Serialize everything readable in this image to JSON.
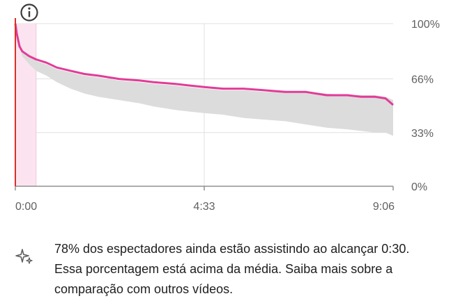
{
  "info": {
    "icon": "info-icon"
  },
  "chart_data": {
    "type": "area",
    "x_tick_labels": [
      "0:00",
      "4:33",
      "9:06"
    ],
    "x_ticks_seconds": [
      0,
      273,
      546
    ],
    "xlim_seconds": [
      0,
      546
    ],
    "y_tick_labels": [
      "100%",
      "66%",
      "33%",
      "0%"
    ],
    "y_ticks": [
      100,
      66,
      33,
      0
    ],
    "ylim": [
      0,
      100
    ],
    "grid": true,
    "highlight_range_seconds": [
      0,
      30
    ],
    "colors": {
      "line": "#e23b98",
      "band": "#dcdcdc",
      "highlight": "#fbe4ef",
      "start": "#d93025",
      "grid": "#e0e0e0",
      "baseline": "#909090"
    },
    "series": [
      {
        "kind": "line",
        "x": [
          0,
          2,
          6,
          10,
          20,
          30,
          45,
          60,
          80,
          100,
          120,
          150,
          180,
          200,
          230,
          250,
          273,
          300,
          330,
          360,
          390,
          420,
          450,
          480,
          500,
          520,
          535,
          546
        ],
        "y": [
          100,
          94,
          86,
          83,
          80,
          78,
          76,
          73,
          71,
          69,
          68,
          66,
          65,
          64,
          63,
          62,
          61,
          60,
          60,
          59,
          58,
          58,
          56,
          56,
          55,
          55,
          54,
          50
        ]
      },
      {
        "kind": "band",
        "x": [
          0,
          10,
          20,
          30,
          45,
          60,
          80,
          100,
          120,
          150,
          180,
          200,
          230,
          250,
          273,
          300,
          330,
          360,
          390,
          420,
          450,
          480,
          500,
          520,
          535,
          546
        ],
        "upper": [
          95,
          84,
          80,
          77,
          75,
          72,
          70,
          68,
          67,
          65,
          64,
          63,
          62,
          61,
          60,
          59,
          59,
          58,
          58,
          58,
          57,
          56,
          56,
          56,
          55,
          53
        ],
        "lower": [
          95,
          80,
          75,
          71,
          68,
          64,
          60,
          57,
          55,
          53,
          51,
          49,
          47,
          46,
          45,
          44,
          42,
          41,
          40,
          38,
          36,
          35,
          34,
          33,
          33,
          31
        ]
      }
    ]
  },
  "insight": {
    "icon": "sparkle-icon",
    "text": "78% dos espectadores ainda estão assistindo ao alcançar 0:30. Essa porcentagem está acima da média. ",
    "link": "Saiba mais sobre a comparação com outros vídeos."
  }
}
